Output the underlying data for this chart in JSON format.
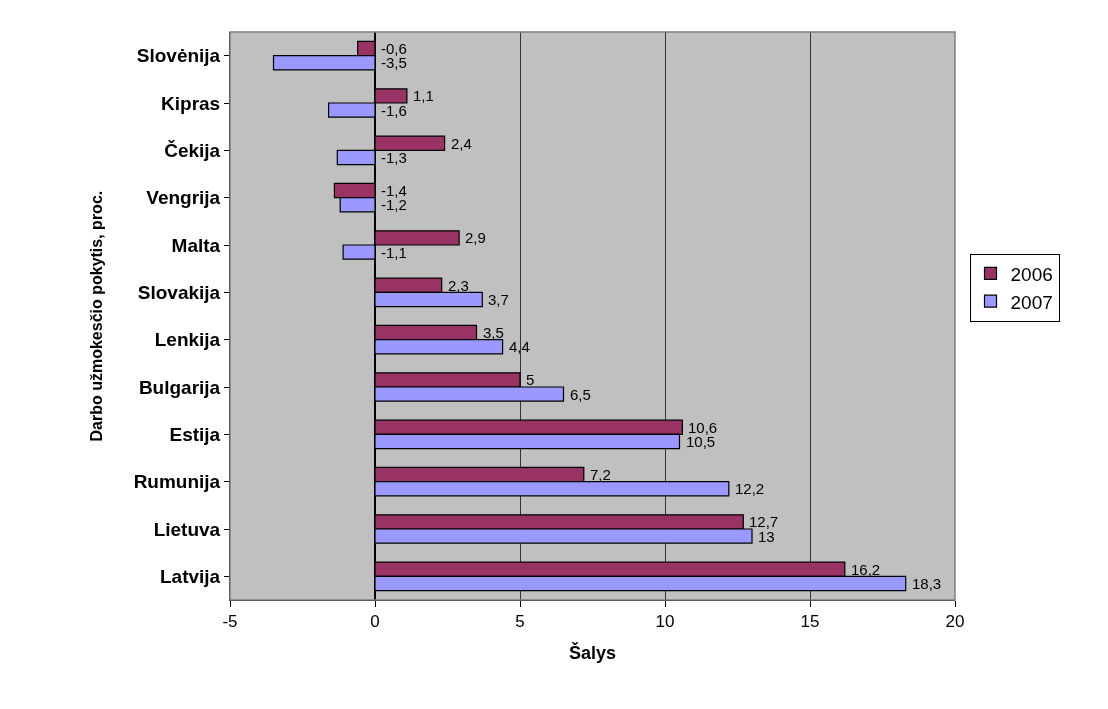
{
  "chart_data": {
    "type": "bar",
    "orientation": "horizontal",
    "xlabel": "Šalys",
    "ylabel": "Darbo užmokesčio pokytis, proc.",
    "categories": [
      "Slovėnija",
      "Kipras",
      "Čekija",
      "Vengrija",
      "Malta",
      "Slovakija",
      "Lenkija",
      "Bulgarija",
      "Estija",
      "Rumunija",
      "Lietuva",
      "Latvija"
    ],
    "series": [
      {
        "name": "2006",
        "color": "#993366",
        "values": [
          -0.6,
          1.1,
          2.4,
          -1.4,
          2.9,
          2.3,
          3.5,
          5,
          10.6,
          7.2,
          12.7,
          16.2
        ],
        "value_labels": [
          "-0,6",
          "1,1",
          "2,4",
          "-1,4",
          "2,9",
          "2,3",
          "3,5",
          "5",
          "10,6",
          "7,2",
          "12,7",
          "16,2"
        ]
      },
      {
        "name": "2007",
        "color": "#9999ff",
        "values": [
          -3.5,
          -1.6,
          -1.3,
          -1.2,
          -1.1,
          3.7,
          4.4,
          6.5,
          10.5,
          12.2,
          13,
          18.3
        ],
        "value_labels": [
          "-3,5",
          "-1,6",
          "-1,3",
          "-1,2",
          "-1,1",
          "3,7",
          "4,4",
          "6,5",
          "10,5",
          "12,2",
          "13",
          "18,3"
        ]
      }
    ],
    "xlim": [
      -5,
      20
    ],
    "xticks": [
      -5,
      0,
      5,
      10,
      15,
      20
    ],
    "grid": "x",
    "legend": "right"
  }
}
